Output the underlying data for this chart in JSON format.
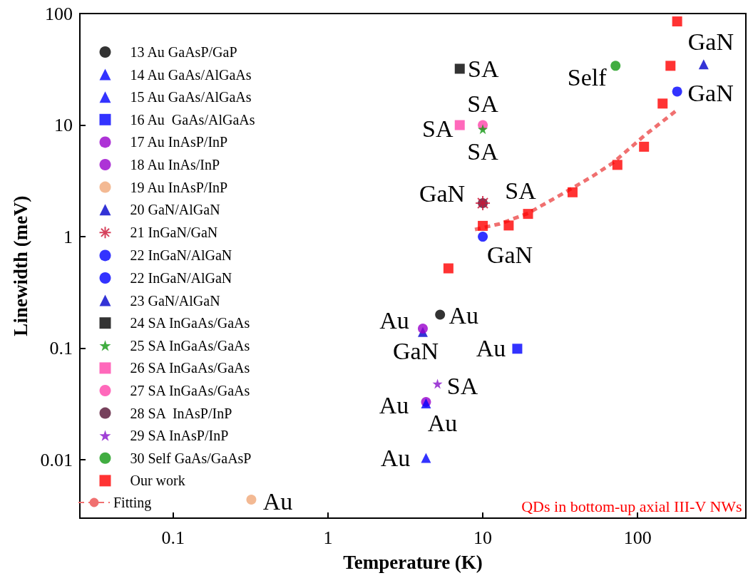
{
  "chart_data": {
    "type": "scatter",
    "xlabel": "Temperature (K)",
    "ylabel": "Linewidth (meV)",
    "log": "xy",
    "grid": false,
    "legend": "left",
    "xlim": [
      0.025,
      500
    ],
    "xticks": [
      0.1,
      1,
      10,
      100
    ],
    "ylim": [
      0.003,
      100
    ],
    "yticks": [
      0.01,
      0.1,
      1,
      10,
      100
    ],
    "series": [
      {
        "name": "13 Au GaAsP/GaP",
        "color": "#000000",
        "marker": "circle",
        "x": [
          5.3
        ],
        "values": [
          0.2
        ]
      },
      {
        "name": "14 Au GaAs/AlGaAs",
        "color": "#0000ff",
        "marker": "triangle",
        "x": [
          4.3
        ],
        "values": [
          0.0104
        ]
      },
      {
        "name": "15 Au GaAs/AlGaAs",
        "color": "#0000ff",
        "marker": "triangle",
        "x": [
          4.3
        ],
        "values": [
          0.032
        ]
      },
      {
        "name": "16 Au  GaAs/AlGaAs",
        "color": "#0000ff",
        "marker": "square",
        "x": [
          16.7
        ],
        "values": [
          0.099
        ]
      },
      {
        "name": "17 Au InAsP/InP",
        "color": "#9900cc",
        "marker": "circle",
        "x": [
          4.1
        ],
        "values": [
          0.15
        ]
      },
      {
        "name": "18 Au InAs/InP",
        "color": "#9900cc",
        "x": [
          4.3
        ],
        "values": [
          0.033
        ]
      },
      {
        "name": "19 Au InAsP/InP",
        "color": "#f0a878",
        "marker": "circle",
        "x": [
          0.32
        ],
        "values": [
          0.0044
        ]
      },
      {
        "name": "20 GaN/AlGaN",
        "color": "#0000cc",
        "marker": "triangle",
        "x": [
          267
        ],
        "values": [
          35
        ]
      },
      {
        "name": "21 InGaN/GaN",
        "color": "#cc1133",
        "marker": "cross",
        "x": [
          10
        ],
        "values": [
          2
        ]
      },
      {
        "name": "22 InGaN/AlGaN",
        "color": "#0000ff",
        "marker": "circle",
        "x": [
          10
        ],
        "values": [
          1
        ]
      },
      {
        "name": "22 InGaN/AlGaN",
        "color": "#0000ff",
        "marker": "circle",
        "x": [
          180
        ],
        "values": [
          20
        ]
      },
      {
        "name": "23 GaN/AlGaN",
        "color": "#0000cc",
        "marker": "triangle",
        "x": [
          4.1
        ],
        "values": [
          0.14
        ]
      },
      {
        "name": "24 SA InGaAs/GaAs",
        "color": "#000000",
        "marker": "square",
        "x": [
          7.1
        ],
        "values": [
          32
        ]
      },
      {
        "name": "25 SA InGaAs/GaAs",
        "color": "#119911",
        "marker": "star",
        "x": [
          10
        ],
        "values": [
          9.2
        ]
      },
      {
        "name": "26 SA InGaAs/GaAs",
        "color": "#ff44aa",
        "marker": "square",
        "x": [
          7.1
        ],
        "values": [
          10
        ]
      },
      {
        "name": "27 SA InGaAs/GaAs",
        "color": "#ff44aa",
        "marker": "circle",
        "x": [
          10
        ],
        "values": [
          10
        ]
      },
      {
        "name": "28 SA  InAsP/InP",
        "color": "#551133",
        "x": [
          10
        ],
        "values": [
          2
        ]
      },
      {
        "name": "29 SA InAsP/InP",
        "color": "#8811cc",
        "marker": "star",
        "x": [
          5.1
        ],
        "values": [
          0.048
        ]
      },
      {
        "name": "30 Self GaAs/GaAsP",
        "color": "#119911",
        "x": [
          72
        ],
        "values": [
          34
        ]
      },
      {
        "name": "Our work",
        "color": "#ff0000",
        "marker": "square",
        "x": [
          6,
          10,
          14.7,
          19.6,
          38,
          74,
          110,
          145,
          163,
          180
        ],
        "values": [
          0.52,
          1.25,
          1.26,
          1.6,
          2.5,
          4.4,
          6.4,
          15.6,
          34,
          85
        ]
      },
      {
        "name": "Fitting",
        "type": "line",
        "color": "#f07070",
        "marker": "none",
        "line_style": "dashed",
        "x": [
          8.9,
          12.8,
          19.6,
          32.3,
          51,
          70,
          111,
          178
        ],
        "values": [
          1.16,
          1.3,
          1.62,
          2.4,
          3.47,
          4.64,
          8.1,
          13.5
        ]
      }
    ],
    "annotations": [
      {
        "text": "SA",
        "x": 7.1,
        "y": 32
      },
      {
        "text": "SA",
        "x": 10,
        "y": 10
      },
      {
        "text": "SA",
        "x": 7.1,
        "y": 10
      },
      {
        "text": "SA",
        "x": 10,
        "y": 9.2
      },
      {
        "text": "GaN",
        "x": 10,
        "y": 2
      },
      {
        "text": "SA",
        "x": 10,
        "y": 2
      },
      {
        "text": "GaN",
        "x": 10,
        "y": 1
      },
      {
        "text": "Self",
        "x": 72,
        "y": 34
      },
      {
        "text": "GaN",
        "x": 267,
        "y": 35
      },
      {
        "text": "GaN",
        "x": 180,
        "y": 20
      },
      {
        "text": "Au",
        "x": 4.1,
        "y": 0.15
      },
      {
        "text": "Au",
        "x": 5.3,
        "y": 0.2
      },
      {
        "text": "GaN",
        "x": 4.1,
        "y": 0.14
      },
      {
        "text": "Au",
        "x": 16.7,
        "y": 0.099
      },
      {
        "text": "SA",
        "x": 5.1,
        "y": 0.048
      },
      {
        "text": "Au",
        "x": 4.3,
        "y": 0.033
      },
      {
        "text": "Au",
        "x": 4.3,
        "y": 0.032
      },
      {
        "text": "Au",
        "x": 4.3,
        "y": 0.0104
      },
      {
        "text": "Au",
        "x": 0.32,
        "y": 0.0044
      },
      "QDs in bottom-up axial III-V NWs"
    ]
  }
}
